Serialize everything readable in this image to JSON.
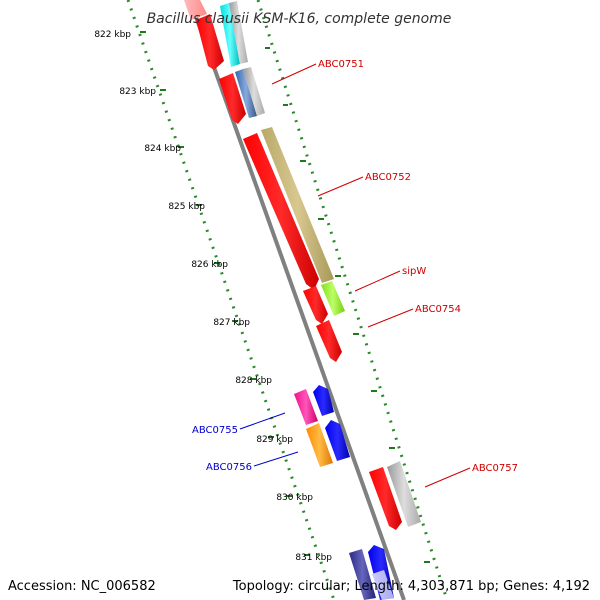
{
  "title": "Bacillus clausii KSM-K16, complete genome",
  "footer": {
    "accession": "Accession: NC_006582",
    "summary": "Topology: circular; Length: 4,303,871 bp; Genes: 4,192"
  },
  "ticks": [
    "822 kbp",
    "823 kbp",
    "824 kbp",
    "825 kbp",
    "826 kbp",
    "827 kbp",
    "828 kbp",
    "829 kbp",
    "830 kbp",
    "831 kbp"
  ],
  "gene_labels": [
    {
      "text": "ABC0751",
      "color": "#cc0000"
    },
    {
      "text": "ABC0752",
      "color": "#cc0000"
    },
    {
      "text": "sipW",
      "color": "#cc0000"
    },
    {
      "text": "ABC0754",
      "color": "#cc0000"
    },
    {
      "text": "ABC0757",
      "color": "#cc0000"
    },
    {
      "text": "ABC0755",
      "color": "#0000cc"
    },
    {
      "text": "ABC0756",
      "color": "#0000cc"
    }
  ],
  "colors": {
    "backbone": "#808080",
    "tick_dots": "#2a8a2a",
    "forward_label": "#cc0000",
    "reverse_label": "#0000cc",
    "cds_red": "#ff0000",
    "cds_blue": "#0000ff",
    "cds_khaki": "#c8b878",
    "cds_green": "#99ee33",
    "cds_gray": "#b0b0b0",
    "cds_steel": "#5588bb",
    "cds_cyan": "#00ffff",
    "cds_magenta": "#ff2299",
    "cds_orange": "#ff9900",
    "cds_navy": "#333399"
  }
}
